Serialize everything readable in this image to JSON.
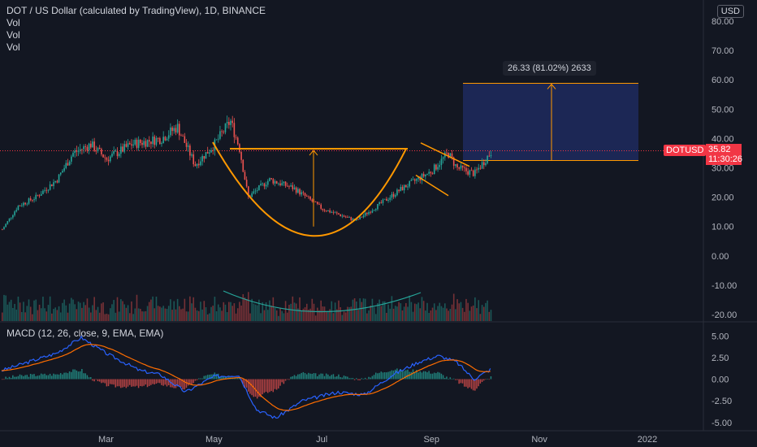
{
  "header": {
    "title": "DOT / US Dollar (calculated by TradingView), 1D, BINANCE",
    "indicators": [
      "Vol",
      "Vol",
      "Vol"
    ],
    "currency": "USD"
  },
  "macd": {
    "label": "MACD (12, 26, close, 9, EMA, EMA)"
  },
  "measure": {
    "label": "26.33 (81.02%) 2633"
  },
  "last_price": {
    "symbol": "DOTUSD",
    "price": "35.82",
    "countdown": "11:30:26"
  },
  "colors": {
    "background": "#131722",
    "up": "#26a69a",
    "down": "#ef5350",
    "drawing": "#ff9800",
    "target_box": "#1e2a5e",
    "macd_line": "#2962ff",
    "signal_line": "#ff6d00",
    "volume_curve": "#26a69a"
  },
  "chart_data": {
    "type": "candlestick",
    "title": "DOT / US Dollar (calculated by TradingView), 1D, BINANCE",
    "y_axis": {
      "ticks": [
        "80.00",
        "70.00",
        "60.00",
        "50.00",
        "40.00",
        "30.00",
        "20.00",
        "10.00",
        "0.00",
        "-10.00",
        "-20.00"
      ],
      "range": [
        -22,
        84
      ]
    },
    "x_axis": {
      "ticks": [
        "Mar",
        "May",
        "Jul",
        "Sep",
        "Nov",
        "2022"
      ]
    },
    "price_path_approx": [
      {
        "date": "2021-01-01",
        "price": 9
      },
      {
        "date": "2021-01-10",
        "price": 17
      },
      {
        "date": "2021-01-20",
        "price": 20
      },
      {
        "date": "2021-02-01",
        "price": 26
      },
      {
        "date": "2021-02-10",
        "price": 35
      },
      {
        "date": "2021-02-20",
        "price": 38
      },
      {
        "date": "2021-03-01",
        "price": 33
      },
      {
        "date": "2021-03-15",
        "price": 38
      },
      {
        "date": "2021-04-01",
        "price": 40
      },
      {
        "date": "2021-04-10",
        "price": 44
      },
      {
        "date": "2021-04-20",
        "price": 31
      },
      {
        "date": "2021-05-01",
        "price": 38
      },
      {
        "date": "2021-05-10",
        "price": 46
      },
      {
        "date": "2021-05-15",
        "price": 37
      },
      {
        "date": "2021-05-20",
        "price": 20
      },
      {
        "date": "2021-06-01",
        "price": 26
      },
      {
        "date": "2021-06-15",
        "price": 23
      },
      {
        "date": "2021-07-01",
        "price": 16
      },
      {
        "date": "2021-07-20",
        "price": 12
      },
      {
        "date": "2021-08-01",
        "price": 17
      },
      {
        "date": "2021-08-15",
        "price": 23
      },
      {
        "date": "2021-09-01",
        "price": 29
      },
      {
        "date": "2021-09-10",
        "price": 35
      },
      {
        "date": "2021-09-15",
        "price": 30
      },
      {
        "date": "2021-09-25",
        "price": 28
      },
      {
        "date": "2021-10-05",
        "price": 36
      }
    ],
    "annotations": {
      "neckline": 36.5,
      "cup_bottom": 10,
      "target_box": {
        "from": 32.5,
        "to": 58.8
      },
      "measure_text": "26.33 (81.02%) 2633"
    },
    "macd": {
      "y_axis": {
        "ticks": [
          "5.00",
          "2.50",
          "0.00",
          "-2.50",
          "-5.00"
        ],
        "range": [
          -5.5,
          5.5
        ]
      },
      "macd_path_approx": [
        {
          "date": "2021-01-01",
          "value": 1
        },
        {
          "date": "2021-02-01",
          "value": 3
        },
        {
          "date": "2021-02-15",
          "value": 4.8
        },
        {
          "date": "2021-03-01",
          "value": 3
        },
        {
          "date": "2021-03-20",
          "value": 1
        },
        {
          "date": "2021-04-01",
          "value": 0.5
        },
        {
          "date": "2021-04-15",
          "value": -1.5
        },
        {
          "date": "2021-05-01",
          "value": 0.3
        },
        {
          "date": "2021-05-15",
          "value": 0.5
        },
        {
          "date": "2021-05-25",
          "value": -3.5
        },
        {
          "date": "2021-06-05",
          "value": -4.5
        },
        {
          "date": "2021-06-20",
          "value": -2.5
        },
        {
          "date": "2021-07-10",
          "value": -1.5
        },
        {
          "date": "2021-07-25",
          "value": -1.8
        },
        {
          "date": "2021-08-10",
          "value": 0.5
        },
        {
          "date": "2021-08-25",
          "value": 2
        },
        {
          "date": "2021-09-05",
          "value": 2.7
        },
        {
          "date": "2021-09-15",
          "value": 2
        },
        {
          "date": "2021-09-25",
          "value": 0
        },
        {
          "date": "2021-10-05",
          "value": 1.2
        }
      ]
    }
  }
}
